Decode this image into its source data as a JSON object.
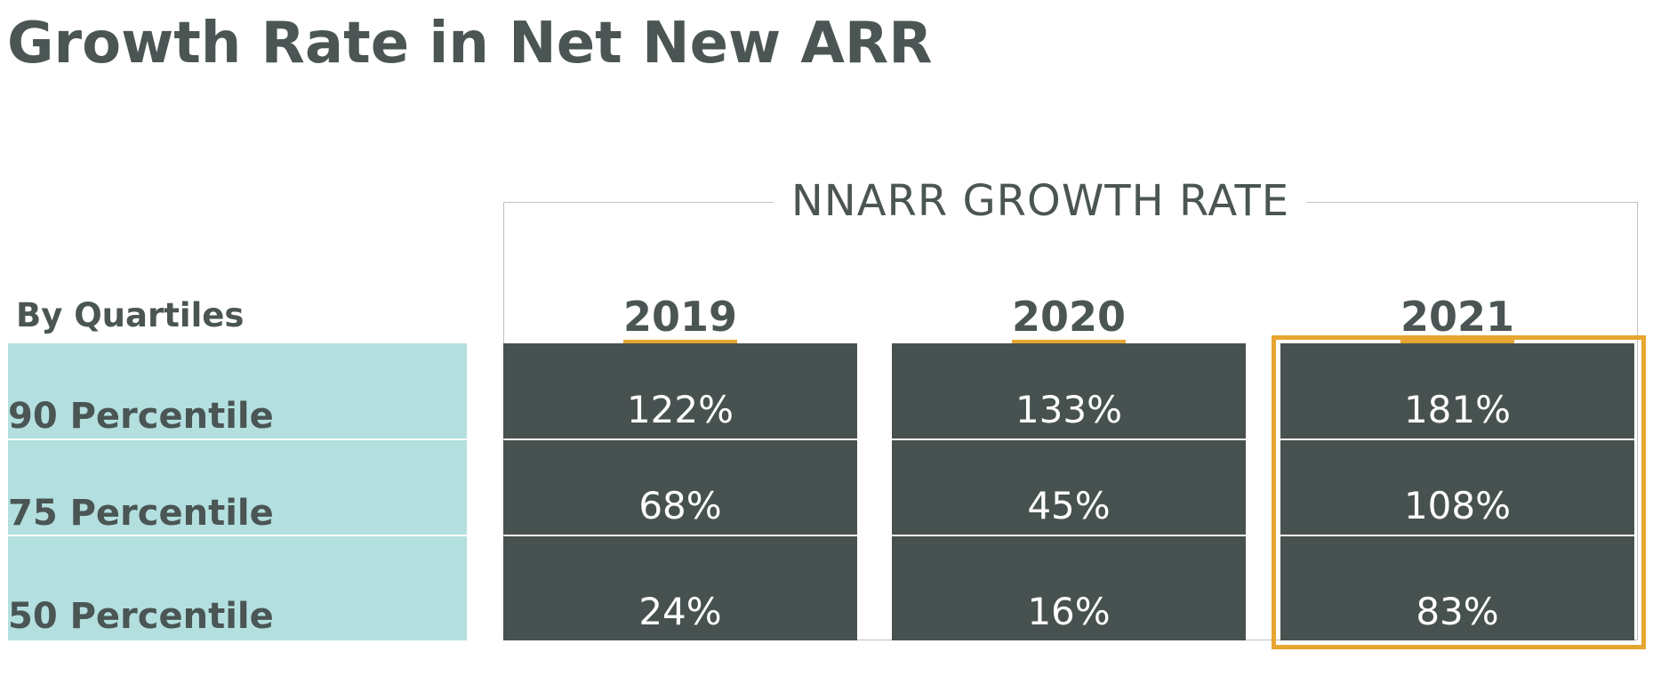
{
  "page": {
    "title": "Growth Rate in Net New ARR"
  },
  "colors": {
    "title_text": "#4a5554",
    "label_column_fill": "#b3dfdf",
    "value_cell_fill": "#475250",
    "value_text": "#ffffff",
    "accent": "#e6a631",
    "frame_line": "#bfc3b9"
  },
  "chart_data": {
    "type": "table",
    "title": "NNARR GROWTH  RATE",
    "row_header": "By Quartiles",
    "columns": [
      "2019",
      "2020",
      "2021"
    ],
    "highlighted_column": "2021",
    "rows": [
      {
        "label": "90 Percentile",
        "values": [
          "122%",
          "133%",
          "181%"
        ]
      },
      {
        "label": "75 Percentile",
        "values": [
          "68%",
          "45%",
          "108%"
        ]
      },
      {
        "label": "50 Percentile",
        "values": [
          "24%",
          "16%",
          "83%"
        ]
      }
    ]
  }
}
